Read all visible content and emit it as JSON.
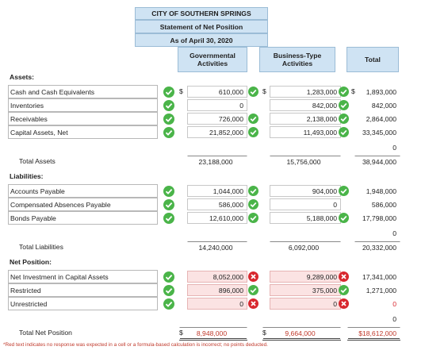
{
  "header": {
    "line1": "CITY OF SOUTHERN SPRINGS",
    "line2": "Statement of Net Position",
    "line3": "As of April 30, 2020"
  },
  "columns": {
    "gov": "Governmental Activities",
    "bus": "Business-Type Activities",
    "total": "Total"
  },
  "sections": {
    "assets": "Assets:",
    "liabilities": "Liabilities:",
    "net_position": "Net Position:"
  },
  "currency": "$",
  "rows": [
    {
      "label": "Cash and Cash Equivalents",
      "gov": "610,000",
      "gov_status": "correct",
      "bus": "1,283,000",
      "bus_status": "correct",
      "total": "1,893,000"
    },
    {
      "label": "Inventories",
      "gov": "0",
      "gov_status": "",
      "bus": "842,000",
      "bus_status": "correct",
      "total": "842,000"
    },
    {
      "label": "Receivables",
      "gov": "726,000",
      "gov_status": "correct",
      "bus": "2,138,000",
      "bus_status": "correct",
      "total": "2,864,000"
    },
    {
      "label": "Capital Assets, Net",
      "gov": "21,852,000",
      "gov_status": "correct",
      "bus": "11,493,000",
      "bus_status": "correct",
      "total": "33,345,000"
    },
    {
      "label": "",
      "total": "0"
    },
    {
      "label": "Total Assets",
      "gov": "23,188,000",
      "bus": "15,756,000",
      "total": "38,944,000"
    },
    {
      "label": "Accounts Payable",
      "gov": "1,044,000",
      "gov_status": "correct",
      "bus": "904,000",
      "bus_status": "correct",
      "total": "1,948,000"
    },
    {
      "label": "Compensated Absences Payable",
      "gov": "586,000",
      "gov_status": "correct",
      "bus": "0",
      "bus_status": "",
      "total": "586,000"
    },
    {
      "label": "Bonds Payable",
      "gov": "12,610,000",
      "gov_status": "correct",
      "bus": "5,188,000",
      "bus_status": "correct",
      "total": "17,798,000"
    },
    {
      "label": "",
      "total": "0"
    },
    {
      "label": "Total Liabilities",
      "gov": "14,240,000",
      "bus": "6,092,000",
      "total": "20,332,000"
    },
    {
      "label": "Net Investment in Capital Assets",
      "gov": "8,052,000",
      "gov_status": "incorrect",
      "bus": "9,289,000",
      "bus_status": "incorrect",
      "total": "17,341,000"
    },
    {
      "label": "Restricted",
      "gov": "896,000",
      "gov_status": "correct",
      "bus": "375,000",
      "bus_status": "correct",
      "total": "1,271,000"
    },
    {
      "label": "Unrestricted",
      "gov": "0",
      "gov_status": "incorrect",
      "bus": "0",
      "bus_status": "incorrect",
      "total": "0"
    },
    {
      "label": "",
      "total": "0"
    },
    {
      "label": "Total Net Position",
      "gov": "8,948,000",
      "bus": "9,664,000",
      "total": "$18,612,000"
    }
  ],
  "footnote": "*Red text indicates no response was expected in a cell or a formula-based calculation is incorrect; no points deducted.",
  "colors": {
    "header_bg": "#cfe3f3",
    "correct": "#4ab449",
    "incorrect": "#d8282f",
    "error_cell": "#fbe3e3"
  }
}
